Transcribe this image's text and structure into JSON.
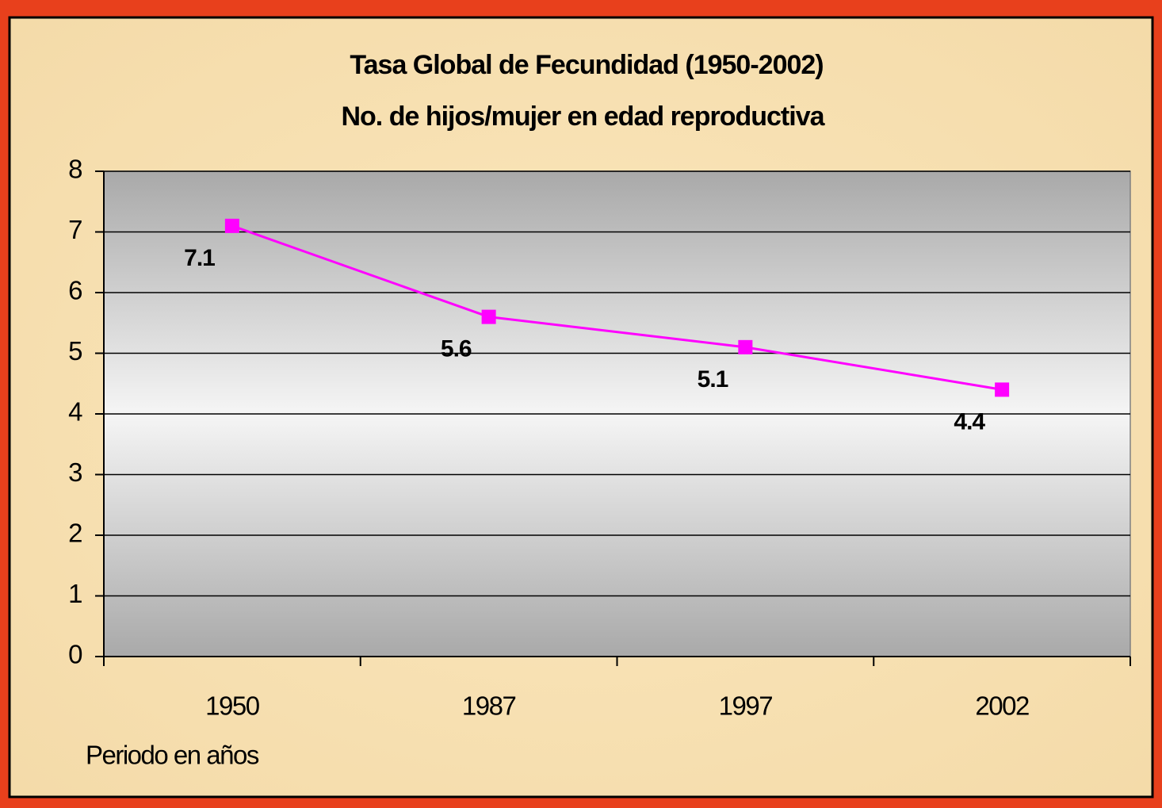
{
  "chart_data": {
    "type": "line",
    "title": "Tasa Global de Fecundidad (1950-2002)",
    "subtitle": "No. de hijos/mujer en edad reproductiva",
    "x_label": "Periodo en años",
    "categories": [
      "1950",
      "1987",
      "1997",
      "2002"
    ],
    "series": [
      {
        "name": "Tasa Global de Fecundidad",
        "color": "#ff00ff",
        "values": [
          7.1,
          5.6,
          5.1,
          4.4
        ]
      }
    ],
    "ylim": [
      0,
      8
    ],
    "yticks": [
      0,
      1,
      2,
      3,
      4,
      5,
      6,
      7,
      8
    ],
    "grid": true
  }
}
